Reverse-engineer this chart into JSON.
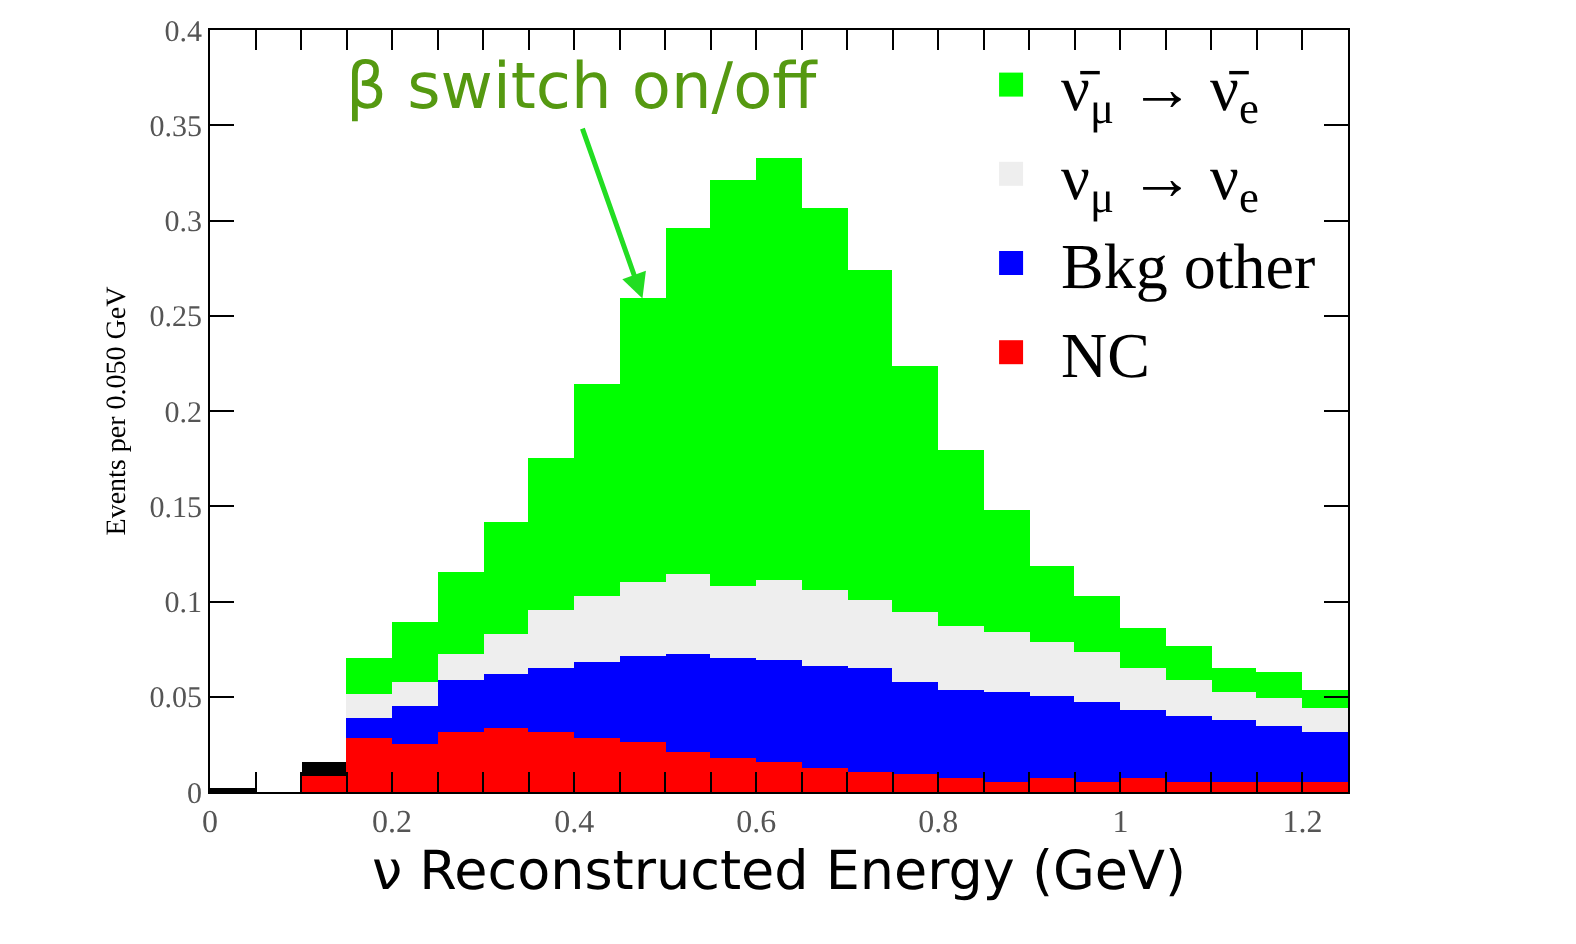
{
  "chart_data": {
    "type": "bar",
    "stacked": true,
    "x": [
      0.025,
      0.075,
      0.125,
      0.175,
      0.225,
      0.275,
      0.325,
      0.375,
      0.425,
      0.475,
      0.525,
      0.575,
      0.625,
      0.675,
      0.725,
      0.775,
      0.825,
      0.875,
      0.925,
      0.975,
      1.025,
      1.075,
      1.125,
      1.175,
      1.225
    ],
    "series": [
      {
        "name": "NC",
        "color": "#ff0000",
        "values": [
          0,
          0,
          0.008,
          0.028,
          0.025,
          0.032,
          0.034,
          0.032,
          0.028,
          0.026,
          0.021,
          0.018,
          0.016,
          0.013,
          0.01,
          0.009,
          0.007,
          0.005,
          0.007,
          0.005,
          0.007,
          0.005,
          0.005,
          0.005,
          0.005
        ]
      },
      {
        "name": "Bkg other",
        "color": "#0000ff",
        "values": [
          0,
          0,
          0,
          0.011,
          0.02,
          0.027,
          0.028,
          0.033,
          0.04,
          0.045,
          0.051,
          0.052,
          0.053,
          0.053,
          0.055,
          0.049,
          0.047,
          0.047,
          0.043,
          0.042,
          0.036,
          0.035,
          0.033,
          0.03,
          0.026
        ]
      },
      {
        "name": "ν$_{μ}$ → ν$_{e}$",
        "color": "#eeeeee",
        "values": [
          0,
          0,
          0,
          0.012,
          0.013,
          0.013,
          0.021,
          0.031,
          0.035,
          0.039,
          0.042,
          0.038,
          0.042,
          0.04,
          0.036,
          0.036,
          0.033,
          0.032,
          0.029,
          0.026,
          0.022,
          0.019,
          0.014,
          0.014,
          0.013
        ]
      },
      {
        "name": "ν̄$_{μ}$ → ν̄$_{e}$",
        "color": "#00ff00",
        "values": [
          0,
          0,
          0,
          0.019,
          0.031,
          0.044,
          0.059,
          0.079,
          0.111,
          0.149,
          0.182,
          0.213,
          0.222,
          0.201,
          0.173,
          0.13,
          0.093,
          0.064,
          0.04,
          0.03,
          0.021,
          0.018,
          0.013,
          0.014,
          0.01
        ]
      },
      {
        "color": "#000000",
        "values": [
          0.002,
          0,
          0.008,
          0,
          0,
          0,
          0,
          0,
          0,
          0,
          0,
          0,
          0,
          0,
          0,
          0,
          0,
          0,
          0,
          0,
          0,
          0,
          0,
          0,
          0
        ]
      }
    ],
    "xlabel": "ν Reconstructed Energy (GeV)",
    "ylabel": "Events per 0.050 GeV",
    "xlim": [
      0,
      1.25
    ],
    "xticks": [
      0,
      {
        "value": 0.05,
        "label": null
      },
      {
        "value": 0.1,
        "label": null
      },
      {
        "value": 0.15,
        "label": null
      },
      0.2,
      {
        "value": 0.25,
        "label": null
      },
      {
        "value": 0.3,
        "label": null
      },
      {
        "value": 0.35,
        "label": null
      },
      0.4,
      {
        "value": 0.45,
        "label": null
      },
      {
        "value": 0.5,
        "label": null
      },
      {
        "value": 0.55,
        "label": null
      },
      0.6,
      {
        "value": 0.65,
        "label": null
      },
      {
        "value": 0.7,
        "label": null
      },
      {
        "value": 0.75,
        "label": null
      },
      0.8,
      {
        "value": 0.85,
        "label": null
      },
      {
        "value": 0.9,
        "label": null
      },
      {
        "value": 0.95,
        "label": null
      },
      1,
      {
        "value": 1.05,
        "label": null
      },
      {
        "value": 1.1,
        "label": null
      },
      {
        "value": 1.15,
        "label": null
      },
      1.2
    ],
    "ylim": [
      0,
      0.4
    ],
    "yticks": [
      0,
      0.05,
      0.1,
      0.15,
      0.2,
      0.25,
      0.3,
      0.35,
      0.4
    ],
    "grid": false,
    "legend": "top right",
    "annotations": [
      {
        "text": "β switch on/off",
        "x": 0.475,
        "y": 0.259
      }
    ]
  }
}
